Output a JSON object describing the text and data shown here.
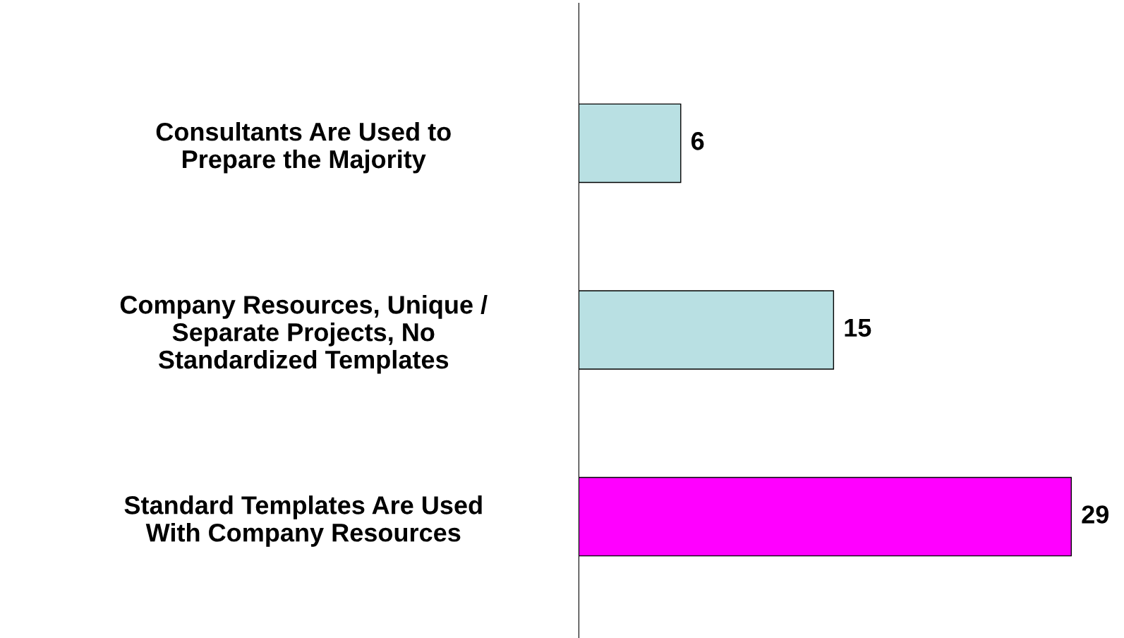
{
  "chart_data": {
    "type": "bar",
    "orientation": "horizontal",
    "categories": [
      "Consultants Are Used to\nPrepare the Majority",
      "Company Resources, Unique /\nSeparate Projects, No\nStandardized Templates",
      "Standard Templates Are Used\nWith Company Resources"
    ],
    "values": [
      6,
      15,
      29
    ],
    "colors": [
      "#b9e0e3",
      "#b9e0e3",
      "#ff00ff"
    ],
    "data_labels": true,
    "tick_labels": "y",
    "grid": false,
    "legend": false
  }
}
